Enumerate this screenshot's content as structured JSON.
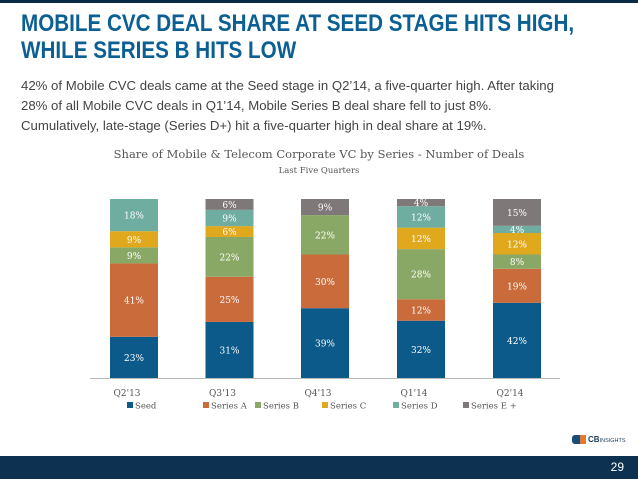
{
  "title_lines": [
    "MOBILE CVC DEAL SHARE AT SEED STAGE HITS HIGH,",
    "WHILE SERIES B HITS LOW"
  ],
  "body_lines": [
    "42% of Mobile CVC deals came at the Seed stage in Q2’14, a five-quarter high. After taking",
    "28% of all Mobile CVC deals in Q1’14, Mobile Series B deal share fell to just 8%.",
    "Cumulatively, late-stage (Series D+) hit a five-quarter high in deal share at 19%."
  ],
  "chart_data": {
    "type": "bar",
    "stacked": true,
    "title": "Share of Mobile & Telecom Corporate VC by Series - Number of Deals",
    "subtitle": "Last Five Quarters",
    "categories": [
      "Q2'13",
      "Q3'13",
      "Q4'13",
      "Q1'14",
      "Q2'14"
    ],
    "ylim": [
      0,
      100
    ],
    "grid": false,
    "legend": "bottom",
    "series": [
      {
        "name": "Seed",
        "color": "#0b5a8a",
        "values": [
          23,
          31,
          39,
          32,
          42
        ]
      },
      {
        "name": "Series A",
        "color": "#c96b3a",
        "values": [
          41,
          25,
          30,
          12,
          19
        ]
      },
      {
        "name": "Series B",
        "color": "#8aa865",
        "values": [
          9,
          22,
          22,
          28,
          8
        ]
      },
      {
        "name": "Series C",
        "color": "#e0a81c",
        "values": [
          9,
          6,
          0,
          12,
          12
        ]
      },
      {
        "name": "Series D",
        "color": "#6fada0",
        "values": [
          18,
          9,
          0,
          12,
          4
        ]
      },
      {
        "name": "Series E +",
        "color": "#7f7878",
        "values": [
          0,
          6,
          9,
          4,
          15
        ]
      }
    ]
  },
  "footer": {
    "logo": "CB INSIGHTS",
    "page_number": "29"
  }
}
